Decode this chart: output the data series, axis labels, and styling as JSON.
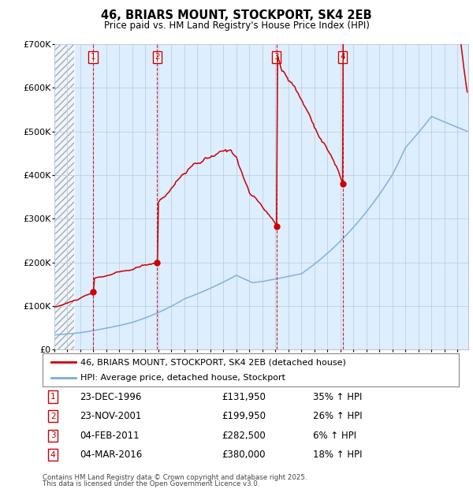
{
  "title": "46, BRIARS MOUNT, STOCKPORT, SK4 2EB",
  "subtitle": "Price paid vs. HM Land Registry's House Price Index (HPI)",
  "legend_line1": "46, BRIARS MOUNT, STOCKPORT, SK4 2EB (detached house)",
  "legend_line2": "HPI: Average price, detached house, Stockport",
  "footer1": "Contains HM Land Registry data © Crown copyright and database right 2025.",
  "footer2": "This data is licensed under the Open Government Licence v3.0.",
  "hpi_color": "#7aaadd",
  "price_color": "#cc0000",
  "bg_color": "#ffffff",
  "plot_bg_color": "#ddeeff",
  "grid_color": "#c0cfe0",
  "dashed_line_color": "#cc0000",
  "ylim": [
    0,
    700000
  ],
  "yticks": [
    0,
    100000,
    200000,
    300000,
    400000,
    500000,
    600000,
    700000
  ],
  "ytick_labels": [
    "£0",
    "£100K",
    "£200K",
    "£300K",
    "£400K",
    "£500K",
    "£600K",
    "£700K"
  ],
  "xstart": 1994.0,
  "xend": 2025.83,
  "transactions": [
    {
      "num": 1,
      "date": "23-DEC-1996",
      "price": 131950,
      "pct": "35%",
      "year": 1996.97
    },
    {
      "num": 2,
      "date": "23-NOV-2001",
      "price": 199950,
      "pct": "26%",
      "year": 2001.9
    },
    {
      "num": 3,
      "date": "04-FEB-2011",
      "price": 282500,
      "pct": "6%",
      "year": 2011.09
    },
    {
      "num": 4,
      "date": "04-MAR-2016",
      "price": 380000,
      "pct": "18%",
      "year": 2016.17
    }
  ]
}
